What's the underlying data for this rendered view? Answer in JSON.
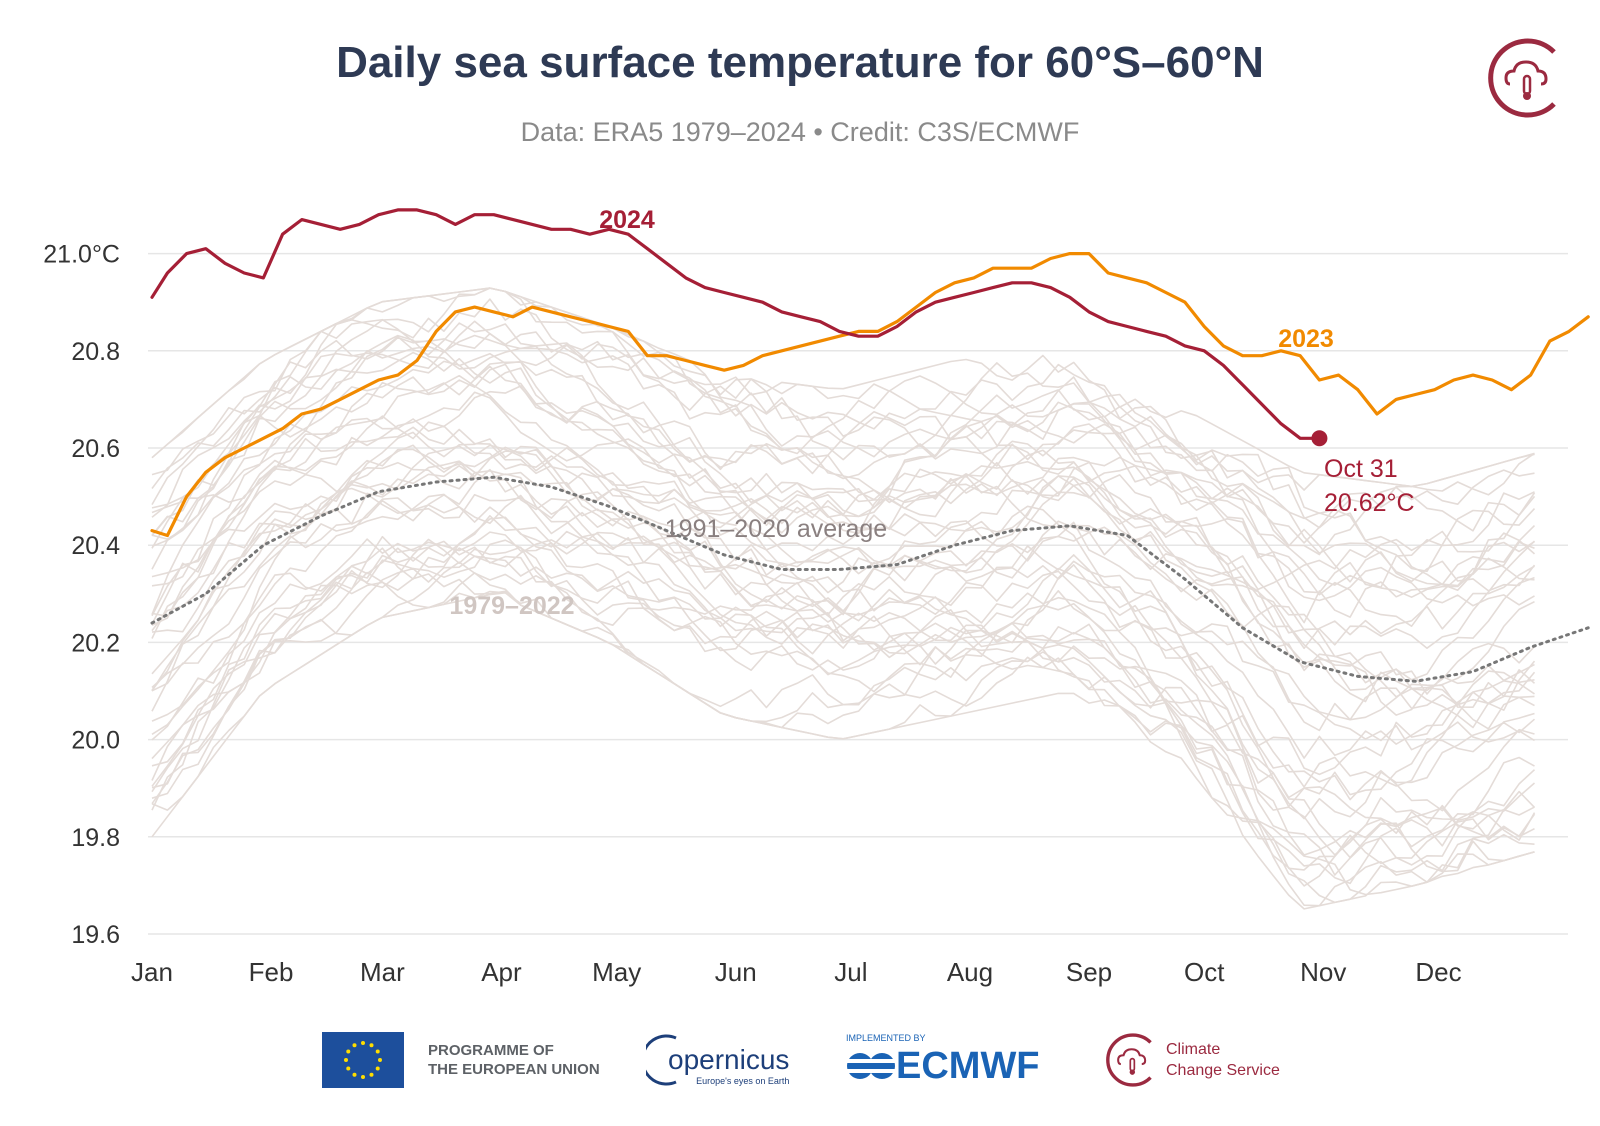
{
  "header": {
    "title": "Daily sea surface temperature for 60°S–60°N",
    "subtitle": "Data: ERA5 1979–2024 • Credit: C3S/ECMWF"
  },
  "colors": {
    "series_2024": "#a51f36",
    "series_2023": "#f18a00",
    "average": "#777777",
    "historical": "#e4dcd8",
    "grid": "#e6e6e6"
  },
  "chart_data": {
    "type": "line",
    "ylim": [
      19.6,
      21.1
    ],
    "y_ticks": [
      {
        "value": 19.6,
        "label": "19.6"
      },
      {
        "value": 19.8,
        "label": "19.8"
      },
      {
        "value": 20.0,
        "label": "20.0"
      },
      {
        "value": 20.2,
        "label": "20.2"
      },
      {
        "value": 20.4,
        "label": "20.4"
      },
      {
        "value": 20.6,
        "label": "20.6"
      },
      {
        "value": 20.8,
        "label": "20.8"
      },
      {
        "value": 21.0,
        "label": "21.0°C"
      }
    ],
    "x_ticks": [
      {
        "day": 1,
        "label": "Jan"
      },
      {
        "day": 32,
        "label": "Feb"
      },
      {
        "day": 61,
        "label": "Mar"
      },
      {
        "day": 92,
        "label": "Apr"
      },
      {
        "day": 122,
        "label": "May"
      },
      {
        "day": 153,
        "label": "Jun"
      },
      {
        "day": 183,
        "label": "Jul"
      },
      {
        "day": 214,
        "label": "Aug"
      },
      {
        "day": 245,
        "label": "Sep"
      },
      {
        "day": 275,
        "label": "Oct"
      },
      {
        "day": 306,
        "label": "Nov"
      },
      {
        "day": 336,
        "label": "Dec"
      }
    ],
    "grid": true,
    "series": [
      {
        "name": "2024",
        "points": [
          [
            1,
            20.91
          ],
          [
            5,
            20.96
          ],
          [
            10,
            21.0
          ],
          [
            15,
            21.01
          ],
          [
            20,
            20.98
          ],
          [
            25,
            20.96
          ],
          [
            30,
            20.95
          ],
          [
            35,
            21.04
          ],
          [
            40,
            21.07
          ],
          [
            45,
            21.06
          ],
          [
            50,
            21.05
          ],
          [
            55,
            21.06
          ],
          [
            60,
            21.08
          ],
          [
            65,
            21.09
          ],
          [
            70,
            21.09
          ],
          [
            75,
            21.08
          ],
          [
            80,
            21.06
          ],
          [
            85,
            21.08
          ],
          [
            90,
            21.08
          ],
          [
            95,
            21.07
          ],
          [
            100,
            21.06
          ],
          [
            105,
            21.05
          ],
          [
            110,
            21.05
          ],
          [
            115,
            21.04
          ],
          [
            120,
            21.05
          ],
          [
            125,
            21.04
          ],
          [
            130,
            21.01
          ],
          [
            135,
            20.98
          ],
          [
            140,
            20.95
          ],
          [
            145,
            20.93
          ],
          [
            150,
            20.92
          ],
          [
            155,
            20.91
          ],
          [
            160,
            20.9
          ],
          [
            165,
            20.88
          ],
          [
            170,
            20.87
          ],
          [
            175,
            20.86
          ],
          [
            180,
            20.84
          ],
          [
            185,
            20.83
          ],
          [
            190,
            20.83
          ],
          [
            195,
            20.85
          ],
          [
            200,
            20.88
          ],
          [
            205,
            20.9
          ],
          [
            210,
            20.91
          ],
          [
            215,
            20.92
          ],
          [
            220,
            20.93
          ],
          [
            225,
            20.94
          ],
          [
            230,
            20.94
          ],
          [
            235,
            20.93
          ],
          [
            240,
            20.91
          ],
          [
            245,
            20.88
          ],
          [
            250,
            20.86
          ],
          [
            255,
            20.85
          ],
          [
            260,
            20.84
          ],
          [
            265,
            20.83
          ],
          [
            270,
            20.81
          ],
          [
            275,
            20.8
          ],
          [
            280,
            20.77
          ],
          [
            285,
            20.73
          ],
          [
            290,
            20.69
          ],
          [
            295,
            20.65
          ],
          [
            300,
            20.62
          ],
          [
            305,
            20.62
          ]
        ]
      },
      {
        "name": "2023",
        "points": [
          [
            1,
            20.43
          ],
          [
            5,
            20.42
          ],
          [
            10,
            20.5
          ],
          [
            15,
            20.55
          ],
          [
            20,
            20.58
          ],
          [
            25,
            20.6
          ],
          [
            30,
            20.62
          ],
          [
            35,
            20.64
          ],
          [
            40,
            20.67
          ],
          [
            45,
            20.68
          ],
          [
            50,
            20.7
          ],
          [
            55,
            20.72
          ],
          [
            60,
            20.74
          ],
          [
            65,
            20.75
          ],
          [
            70,
            20.78
          ],
          [
            75,
            20.84
          ],
          [
            80,
            20.88
          ],
          [
            85,
            20.89
          ],
          [
            90,
            20.88
          ],
          [
            95,
            20.87
          ],
          [
            100,
            20.89
          ],
          [
            105,
            20.88
          ],
          [
            110,
            20.87
          ],
          [
            115,
            20.86
          ],
          [
            120,
            20.85
          ],
          [
            125,
            20.84
          ],
          [
            130,
            20.79
          ],
          [
            135,
            20.79
          ],
          [
            140,
            20.78
          ],
          [
            145,
            20.77
          ],
          [
            150,
            20.76
          ],
          [
            155,
            20.77
          ],
          [
            160,
            20.79
          ],
          [
            165,
            20.8
          ],
          [
            170,
            20.81
          ],
          [
            175,
            20.82
          ],
          [
            180,
            20.83
          ],
          [
            185,
            20.84
          ],
          [
            190,
            20.84
          ],
          [
            195,
            20.86
          ],
          [
            200,
            20.89
          ],
          [
            205,
            20.92
          ],
          [
            210,
            20.94
          ],
          [
            215,
            20.95
          ],
          [
            220,
            20.97
          ],
          [
            225,
            20.97
          ],
          [
            230,
            20.97
          ],
          [
            235,
            20.99
          ],
          [
            240,
            21.0
          ],
          [
            245,
            21.0
          ],
          [
            250,
            20.96
          ],
          [
            255,
            20.95
          ],
          [
            260,
            20.94
          ],
          [
            265,
            20.92
          ],
          [
            270,
            20.9
          ],
          [
            275,
            20.85
          ],
          [
            280,
            20.81
          ],
          [
            285,
            20.79
          ],
          [
            290,
            20.79
          ],
          [
            295,
            20.8
          ],
          [
            300,
            20.79
          ],
          [
            305,
            20.74
          ],
          [
            310,
            20.75
          ],
          [
            315,
            20.72
          ],
          [
            320,
            20.67
          ],
          [
            325,
            20.7
          ],
          [
            330,
            20.71
          ],
          [
            335,
            20.72
          ],
          [
            340,
            20.74
          ],
          [
            345,
            20.75
          ],
          [
            350,
            20.74
          ],
          [
            355,
            20.72
          ],
          [
            360,
            20.75
          ],
          [
            365,
            20.82
          ],
          [
            370,
            20.84
          ],
          [
            375,
            20.87
          ]
        ]
      },
      {
        "name": "1991–2020 average",
        "points": [
          [
            1,
            20.24
          ],
          [
            15,
            20.3
          ],
          [
            30,
            20.4
          ],
          [
            45,
            20.46
          ],
          [
            60,
            20.51
          ],
          [
            75,
            20.53
          ],
          [
            90,
            20.54
          ],
          [
            105,
            20.52
          ],
          [
            120,
            20.48
          ],
          [
            135,
            20.43
          ],
          [
            150,
            20.38
          ],
          [
            165,
            20.35
          ],
          [
            180,
            20.35
          ],
          [
            195,
            20.36
          ],
          [
            210,
            20.4
          ],
          [
            225,
            20.43
          ],
          [
            240,
            20.44
          ],
          [
            255,
            20.42
          ],
          [
            270,
            20.33
          ],
          [
            285,
            20.23
          ],
          [
            300,
            20.16
          ],
          [
            315,
            20.13
          ],
          [
            330,
            20.12
          ],
          [
            345,
            20.14
          ],
          [
            360,
            20.19
          ],
          [
            375,
            20.23
          ]
        ]
      }
    ],
    "historical_band": {
      "label": "1979–2022",
      "count": 44,
      "envelope": [
        [
          1,
          19.8,
          20.58
        ],
        [
          30,
          20.1,
          20.78
        ],
        [
          60,
          20.25,
          20.9
        ],
        [
          90,
          20.3,
          20.93
        ],
        [
          120,
          20.2,
          20.85
        ],
        [
          150,
          20.05,
          20.75
        ],
        [
          180,
          20.0,
          20.72
        ],
        [
          210,
          20.05,
          20.78
        ],
        [
          240,
          20.1,
          20.8
        ],
        [
          270,
          19.95,
          20.68
        ],
        [
          300,
          19.65,
          20.55
        ],
        [
          330,
          19.7,
          20.52
        ],
        [
          375,
          19.8,
          20.62
        ]
      ]
    },
    "annotations": {
      "label_2024": "2024",
      "label_2023": "2023",
      "label_average": "1991–2020 average",
      "label_historical": "1979–2022",
      "endpoint_date": "Oct 31",
      "endpoint_value": "20.62°C",
      "endpoint": {
        "day": 305,
        "value": 20.62
      }
    }
  },
  "footer": {
    "eu_line1": "PROGRAMME OF",
    "eu_line2": "THE EUROPEAN UNION",
    "copernicus_name": "opernicus",
    "copernicus_tagline": "Europe's eyes on Earth",
    "ecmwf_small": "IMPLEMENTED BY",
    "ecmwf_name": "ECMWF",
    "c3s_line1": "Climate",
    "c3s_line2": "Change Service"
  }
}
